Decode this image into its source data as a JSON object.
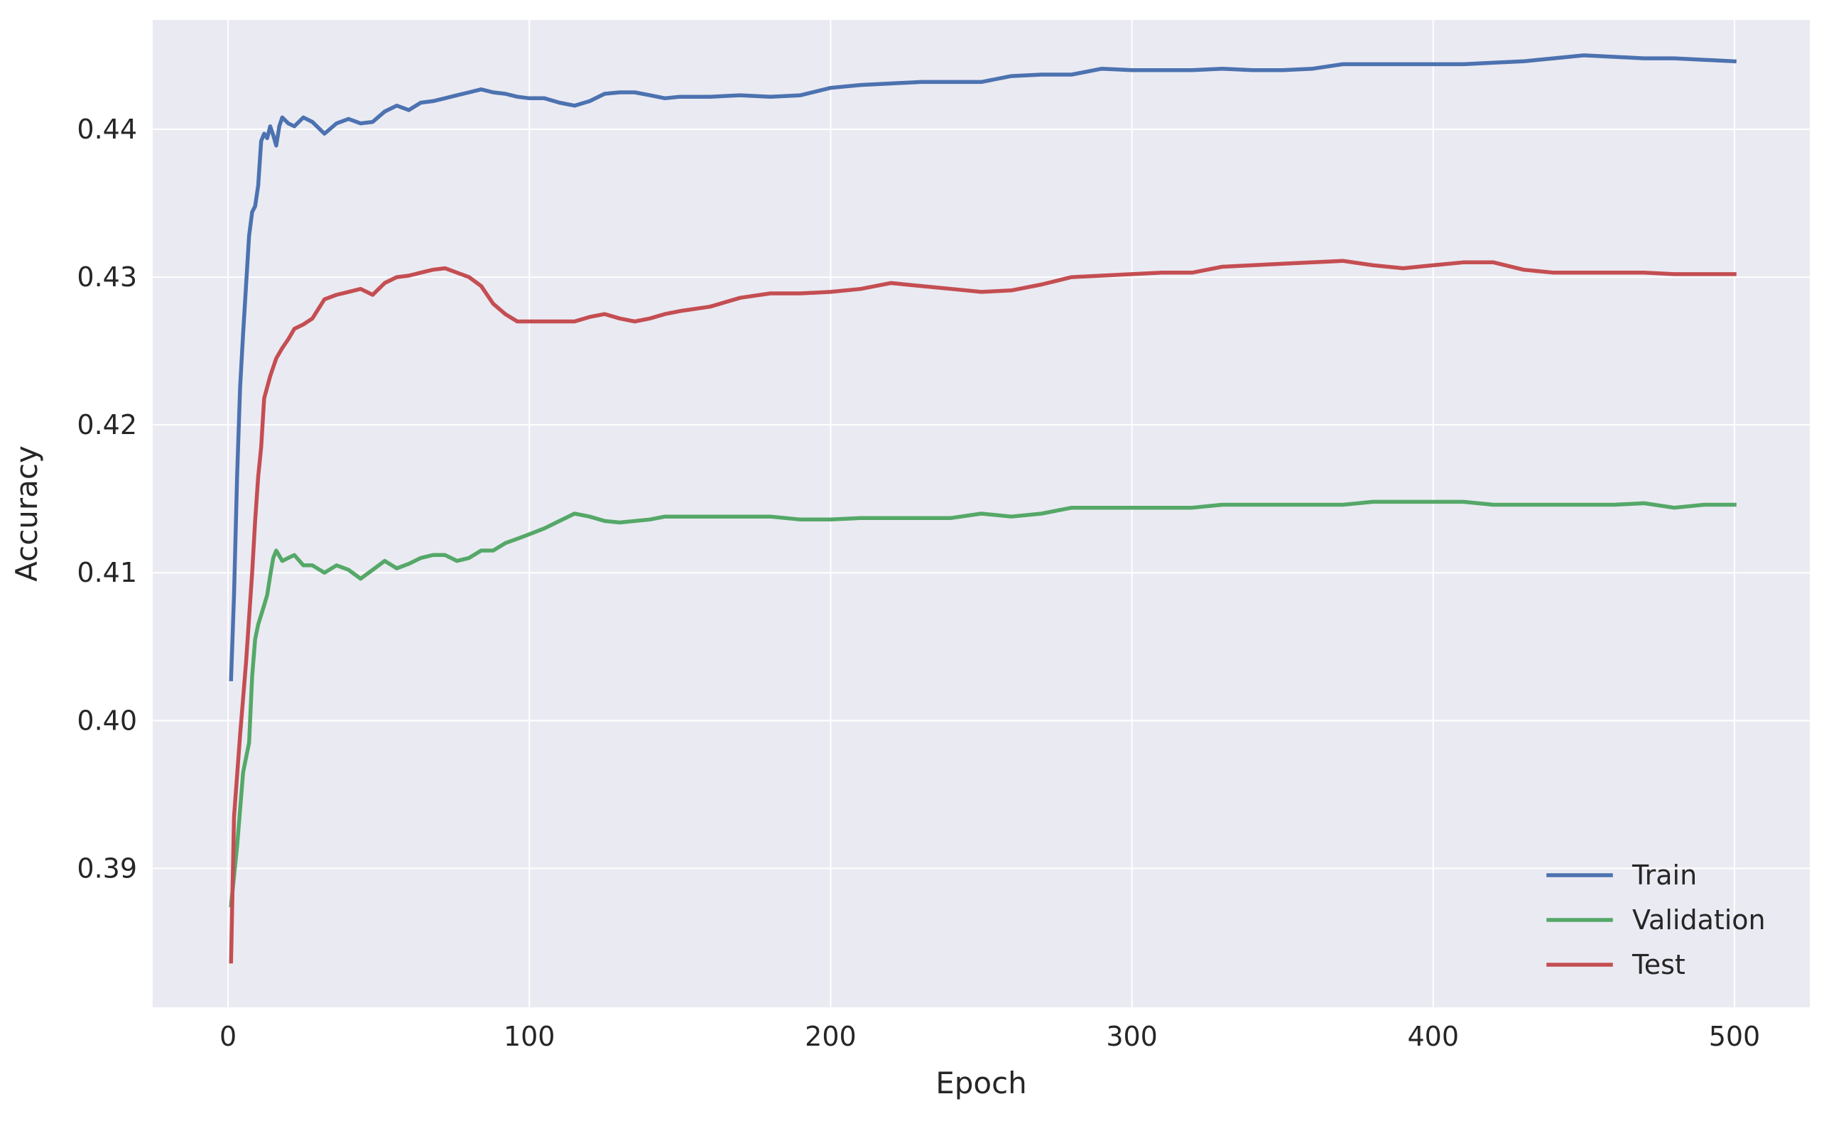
{
  "chart_data": {
    "type": "line",
    "title": "",
    "xlabel": "Epoch",
    "ylabel": "Accuracy",
    "xlim": [
      -25,
      525
    ],
    "ylim": [
      0.3806,
      0.4474
    ],
    "xticks": [
      0,
      100,
      200,
      300,
      400,
      500
    ],
    "xtick_labels": [
      "0",
      "100",
      "200",
      "300",
      "400",
      "500"
    ],
    "yticks": [
      0.39,
      0.4,
      0.41,
      0.42,
      0.43,
      0.44
    ],
    "ytick_labels": [
      "0.39",
      "0.40",
      "0.41",
      "0.42",
      "0.43",
      "0.44"
    ],
    "grid": true,
    "background": "#eaeaf2",
    "legend_position": "lower-right",
    "series": [
      {
        "name": "Train",
        "color": "#4c72b0",
        "points": [
          [
            1,
            0.4028
          ],
          [
            2,
            0.4085
          ],
          [
            3,
            0.4165
          ],
          [
            4,
            0.4225
          ],
          [
            5,
            0.4262
          ],
          [
            6,
            0.4295
          ],
          [
            7,
            0.4328
          ],
          [
            8,
            0.4344
          ],
          [
            9,
            0.4348
          ],
          [
            10,
            0.4362
          ],
          [
            11,
            0.4392
          ],
          [
            12,
            0.4397
          ],
          [
            13,
            0.4394
          ],
          [
            14,
            0.4402
          ],
          [
            15,
            0.4396
          ],
          [
            16,
            0.4389
          ],
          [
            17,
            0.4402
          ],
          [
            18,
            0.4408
          ],
          [
            20,
            0.4404
          ],
          [
            22,
            0.4402
          ],
          [
            25,
            0.4408
          ],
          [
            28,
            0.4405
          ],
          [
            32,
            0.4397
          ],
          [
            36,
            0.4404
          ],
          [
            40,
            0.4407
          ],
          [
            44,
            0.4404
          ],
          [
            48,
            0.4405
          ],
          [
            52,
            0.4412
          ],
          [
            56,
            0.4416
          ],
          [
            60,
            0.4413
          ],
          [
            64,
            0.4418
          ],
          [
            68,
            0.4419
          ],
          [
            72,
            0.4421
          ],
          [
            76,
            0.4423
          ],
          [
            80,
            0.4425
          ],
          [
            84,
            0.4427
          ],
          [
            88,
            0.4425
          ],
          [
            92,
            0.4424
          ],
          [
            96,
            0.4422
          ],
          [
            100,
            0.4421
          ],
          [
            105,
            0.4421
          ],
          [
            110,
            0.4418
          ],
          [
            115,
            0.4416
          ],
          [
            120,
            0.4419
          ],
          [
            125,
            0.4424
          ],
          [
            130,
            0.4425
          ],
          [
            135,
            0.4425
          ],
          [
            140,
            0.4423
          ],
          [
            145,
            0.4421
          ],
          [
            150,
            0.4422
          ],
          [
            160,
            0.4422
          ],
          [
            170,
            0.4423
          ],
          [
            180,
            0.4422
          ],
          [
            190,
            0.4423
          ],
          [
            200,
            0.4428
          ],
          [
            210,
            0.443
          ],
          [
            220,
            0.4431
          ],
          [
            230,
            0.4432
          ],
          [
            240,
            0.4432
          ],
          [
            250,
            0.4432
          ],
          [
            260,
            0.4436
          ],
          [
            270,
            0.4437
          ],
          [
            280,
            0.4437
          ],
          [
            290,
            0.4441
          ],
          [
            300,
            0.444
          ],
          [
            310,
            0.444
          ],
          [
            320,
            0.444
          ],
          [
            330,
            0.4441
          ],
          [
            340,
            0.444
          ],
          [
            350,
            0.444
          ],
          [
            360,
            0.4441
          ],
          [
            370,
            0.4444
          ],
          [
            380,
            0.4444
          ],
          [
            390,
            0.4444
          ],
          [
            400,
            0.4444
          ],
          [
            410,
            0.4444
          ],
          [
            420,
            0.4445
          ],
          [
            430,
            0.4446
          ],
          [
            440,
            0.4448
          ],
          [
            450,
            0.445
          ],
          [
            460,
            0.4449
          ],
          [
            470,
            0.4448
          ],
          [
            480,
            0.4448
          ],
          [
            490,
            0.4447
          ],
          [
            500,
            0.4446
          ]
        ]
      },
      {
        "name": "Validation",
        "color": "#55a868",
        "points": [
          [
            1,
            0.3875
          ],
          [
            3,
            0.3915
          ],
          [
            5,
            0.3965
          ],
          [
            7,
            0.3985
          ],
          [
            8,
            0.403
          ],
          [
            9,
            0.4055
          ],
          [
            10,
            0.4065
          ],
          [
            12,
            0.4078
          ],
          [
            13,
            0.4085
          ],
          [
            14,
            0.4098
          ],
          [
            15,
            0.411
          ],
          [
            16,
            0.4115
          ],
          [
            18,
            0.4108
          ],
          [
            20,
            0.411
          ],
          [
            22,
            0.4112
          ],
          [
            25,
            0.4105
          ],
          [
            28,
            0.4105
          ],
          [
            32,
            0.41
          ],
          [
            36,
            0.4105
          ],
          [
            40,
            0.4102
          ],
          [
            44,
            0.4096
          ],
          [
            48,
            0.4102
          ],
          [
            52,
            0.4108
          ],
          [
            56,
            0.4103
          ],
          [
            60,
            0.4106
          ],
          [
            64,
            0.411
          ],
          [
            68,
            0.4112
          ],
          [
            72,
            0.4112
          ],
          [
            76,
            0.4108
          ],
          [
            80,
            0.411
          ],
          [
            84,
            0.4115
          ],
          [
            88,
            0.4115
          ],
          [
            92,
            0.412
          ],
          [
            96,
            0.4123
          ],
          [
            100,
            0.4126
          ],
          [
            105,
            0.413
          ],
          [
            110,
            0.4135
          ],
          [
            115,
            0.414
          ],
          [
            120,
            0.4138
          ],
          [
            125,
            0.4135
          ],
          [
            130,
            0.4134
          ],
          [
            135,
            0.4135
          ],
          [
            140,
            0.4136
          ],
          [
            145,
            0.4138
          ],
          [
            150,
            0.4138
          ],
          [
            160,
            0.4138
          ],
          [
            170,
            0.4138
          ],
          [
            180,
            0.4138
          ],
          [
            190,
            0.4136
          ],
          [
            200,
            0.4136
          ],
          [
            210,
            0.4137
          ],
          [
            220,
            0.4137
          ],
          [
            230,
            0.4137
          ],
          [
            240,
            0.4137
          ],
          [
            250,
            0.414
          ],
          [
            260,
            0.4138
          ],
          [
            270,
            0.414
          ],
          [
            280,
            0.4144
          ],
          [
            290,
            0.4144
          ],
          [
            300,
            0.4144
          ],
          [
            310,
            0.4144
          ],
          [
            320,
            0.4144
          ],
          [
            330,
            0.4146
          ],
          [
            340,
            0.4146
          ],
          [
            350,
            0.4146
          ],
          [
            360,
            0.4146
          ],
          [
            370,
            0.4146
          ],
          [
            380,
            0.4148
          ],
          [
            390,
            0.4148
          ],
          [
            400,
            0.4148
          ],
          [
            410,
            0.4148
          ],
          [
            420,
            0.4146
          ],
          [
            430,
            0.4146
          ],
          [
            440,
            0.4146
          ],
          [
            450,
            0.4146
          ],
          [
            460,
            0.4146
          ],
          [
            470,
            0.4147
          ],
          [
            480,
            0.4144
          ],
          [
            490,
            0.4146
          ],
          [
            500,
            0.4146
          ]
        ]
      },
      {
        "name": "Test",
        "color": "#c44e52",
        "points": [
          [
            1,
            0.3837
          ],
          [
            2,
            0.3935
          ],
          [
            4,
            0.399
          ],
          [
            6,
            0.404
          ],
          [
            8,
            0.41
          ],
          [
            9,
            0.4135
          ],
          [
            10,
            0.4165
          ],
          [
            11,
            0.4185
          ],
          [
            12,
            0.4218
          ],
          [
            14,
            0.4233
          ],
          [
            16,
            0.4245
          ],
          [
            18,
            0.4252
          ],
          [
            20,
            0.4258
          ],
          [
            22,
            0.4265
          ],
          [
            25,
            0.4268
          ],
          [
            28,
            0.4272
          ],
          [
            32,
            0.4285
          ],
          [
            36,
            0.4288
          ],
          [
            40,
            0.429
          ],
          [
            44,
            0.4292
          ],
          [
            48,
            0.4288
          ],
          [
            52,
            0.4296
          ],
          [
            56,
            0.43
          ],
          [
            60,
            0.4301
          ],
          [
            64,
            0.4303
          ],
          [
            68,
            0.4305
          ],
          [
            72,
            0.4306
          ],
          [
            76,
            0.4303
          ],
          [
            80,
            0.43
          ],
          [
            84,
            0.4294
          ],
          [
            88,
            0.4282
          ],
          [
            92,
            0.4275
          ],
          [
            96,
            0.427
          ],
          [
            100,
            0.427
          ],
          [
            105,
            0.427
          ],
          [
            110,
            0.427
          ],
          [
            115,
            0.427
          ],
          [
            120,
            0.4273
          ],
          [
            125,
            0.4275
          ],
          [
            130,
            0.4272
          ],
          [
            135,
            0.427
          ],
          [
            140,
            0.4272
          ],
          [
            145,
            0.4275
          ],
          [
            150,
            0.4277
          ],
          [
            160,
            0.428
          ],
          [
            170,
            0.4286
          ],
          [
            180,
            0.4289
          ],
          [
            190,
            0.4289
          ],
          [
            200,
            0.429
          ],
          [
            210,
            0.4292
          ],
          [
            220,
            0.4296
          ],
          [
            230,
            0.4294
          ],
          [
            240,
            0.4292
          ],
          [
            250,
            0.429
          ],
          [
            260,
            0.4291
          ],
          [
            270,
            0.4295
          ],
          [
            280,
            0.43
          ],
          [
            290,
            0.4301
          ],
          [
            300,
            0.4302
          ],
          [
            310,
            0.4303
          ],
          [
            320,
            0.4303
          ],
          [
            330,
            0.4307
          ],
          [
            340,
            0.4308
          ],
          [
            350,
            0.4309
          ],
          [
            360,
            0.431
          ],
          [
            370,
            0.4311
          ],
          [
            380,
            0.4308
          ],
          [
            390,
            0.4306
          ],
          [
            400,
            0.4308
          ],
          [
            410,
            0.431
          ],
          [
            420,
            0.431
          ],
          [
            430,
            0.4305
          ],
          [
            440,
            0.4303
          ],
          [
            450,
            0.4303
          ],
          [
            460,
            0.4303
          ],
          [
            470,
            0.4303
          ],
          [
            480,
            0.4302
          ],
          [
            490,
            0.4302
          ],
          [
            500,
            0.4302
          ]
        ]
      }
    ]
  }
}
